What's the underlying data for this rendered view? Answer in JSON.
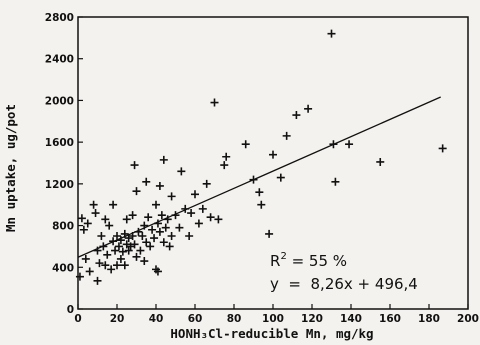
{
  "chart_data": {
    "type": "scatter",
    "xlabel": "HONH₃Cl-reducible Mn, mg/kg",
    "ylabel": "Mn uptake, ug/pot",
    "xlim": [
      0,
      200
    ],
    "ylim": [
      0,
      2800
    ],
    "x_ticks": [
      0,
      20,
      40,
      60,
      80,
      100,
      120,
      140,
      160,
      180,
      200
    ],
    "y_ticks": [
      0,
      400,
      800,
      1200,
      1600,
      2000,
      2400,
      2800
    ],
    "x_tick_labels": [
      "0",
      "20",
      "40",
      "60",
      "80",
      "100",
      "120",
      "140",
      "160",
      "180",
      "200"
    ],
    "y_tick_labels": [
      "0",
      "400",
      "800",
      "1200",
      "1600",
      "2000",
      "2400",
      "2800"
    ],
    "grid": false,
    "marker": "plus",
    "points": [
      {
        "x": 1,
        "y": 310
      },
      {
        "x": 2,
        "y": 870
      },
      {
        "x": 3,
        "y": 760
      },
      {
        "x": 4,
        "y": 480
      },
      {
        "x": 5,
        "y": 820
      },
      {
        "x": 6,
        "y": 360
      },
      {
        "x": 8,
        "y": 1000
      },
      {
        "x": 9,
        "y": 920
      },
      {
        "x": 10,
        "y": 270
      },
      {
        "x": 10,
        "y": 560
      },
      {
        "x": 11,
        "y": 440
      },
      {
        "x": 12,
        "y": 700
      },
      {
        "x": 13,
        "y": 600
      },
      {
        "x": 14,
        "y": 420
      },
      {
        "x": 14,
        "y": 860
      },
      {
        "x": 15,
        "y": 520
      },
      {
        "x": 16,
        "y": 800
      },
      {
        "x": 17,
        "y": 380
      },
      {
        "x": 18,
        "y": 650
      },
      {
        "x": 18,
        "y": 1000
      },
      {
        "x": 19,
        "y": 560
      },
      {
        "x": 20,
        "y": 420
      },
      {
        "x": 20,
        "y": 700
      },
      {
        "x": 21,
        "y": 600
      },
      {
        "x": 22,
        "y": 660
      },
      {
        "x": 22,
        "y": 480
      },
      {
        "x": 23,
        "y": 550
      },
      {
        "x": 24,
        "y": 720
      },
      {
        "x": 24,
        "y": 420
      },
      {
        "x": 25,
        "y": 620
      },
      {
        "x": 25,
        "y": 860
      },
      {
        "x": 26,
        "y": 560
      },
      {
        "x": 26,
        "y": 680
      },
      {
        "x": 27,
        "y": 600
      },
      {
        "x": 28,
        "y": 900
      },
      {
        "x": 28,
        "y": 700
      },
      {
        "x": 29,
        "y": 1380
      },
      {
        "x": 29,
        "y": 620
      },
      {
        "x": 30,
        "y": 1130
      },
      {
        "x": 30,
        "y": 500
      },
      {
        "x": 31,
        "y": 740
      },
      {
        "x": 32,
        "y": 560
      },
      {
        "x": 33,
        "y": 700
      },
      {
        "x": 34,
        "y": 800
      },
      {
        "x": 34,
        "y": 460
      },
      {
        "x": 35,
        "y": 1220
      },
      {
        "x": 35,
        "y": 640
      },
      {
        "x": 36,
        "y": 880
      },
      {
        "x": 37,
        "y": 600
      },
      {
        "x": 38,
        "y": 760
      },
      {
        "x": 39,
        "y": 680
      },
      {
        "x": 40,
        "y": 1000
      },
      {
        "x": 40,
        "y": 380
      },
      {
        "x": 41,
        "y": 820
      },
      {
        "x": 41,
        "y": 360
      },
      {
        "x": 42,
        "y": 1180
      },
      {
        "x": 42,
        "y": 740
      },
      {
        "x": 43,
        "y": 900
      },
      {
        "x": 44,
        "y": 1430
      },
      {
        "x": 44,
        "y": 640
      },
      {
        "x": 45,
        "y": 780
      },
      {
        "x": 46,
        "y": 860
      },
      {
        "x": 47,
        "y": 600
      },
      {
        "x": 48,
        "y": 700
      },
      {
        "x": 48,
        "y": 1080
      },
      {
        "x": 50,
        "y": 900
      },
      {
        "x": 52,
        "y": 780
      },
      {
        "x": 53,
        "y": 1320
      },
      {
        "x": 55,
        "y": 960
      },
      {
        "x": 57,
        "y": 700
      },
      {
        "x": 58,
        "y": 920
      },
      {
        "x": 60,
        "y": 1100
      },
      {
        "x": 62,
        "y": 820
      },
      {
        "x": 64,
        "y": 960
      },
      {
        "x": 66,
        "y": 1200
      },
      {
        "x": 68,
        "y": 880
      },
      {
        "x": 70,
        "y": 1980
      },
      {
        "x": 72,
        "y": 860
      },
      {
        "x": 75,
        "y": 1380
      },
      {
        "x": 76,
        "y": 1460
      },
      {
        "x": 86,
        "y": 1580
      },
      {
        "x": 90,
        "y": 1240
      },
      {
        "x": 93,
        "y": 1120
      },
      {
        "x": 94,
        "y": 1000
      },
      {
        "x": 98,
        "y": 720
      },
      {
        "x": 100,
        "y": 1480
      },
      {
        "x": 104,
        "y": 1260
      },
      {
        "x": 107,
        "y": 1660
      },
      {
        "x": 112,
        "y": 1860
      },
      {
        "x": 118,
        "y": 1920
      },
      {
        "x": 130,
        "y": 2640
      },
      {
        "x": 131,
        "y": 1580
      },
      {
        "x": 132,
        "y": 1220
      },
      {
        "x": 139,
        "y": 1580
      },
      {
        "x": 155,
        "y": 1410
      },
      {
        "x": 187,
        "y": 1540
      }
    ],
    "regression": {
      "slope": 8.26,
      "intercept": 496.4,
      "x_range": [
        0,
        186
      ],
      "r2_label": "R",
      "r2_exponent": "2",
      "r2_text": " = 55 %",
      "equation": "y  =  8,26x + 496,4"
    }
  }
}
